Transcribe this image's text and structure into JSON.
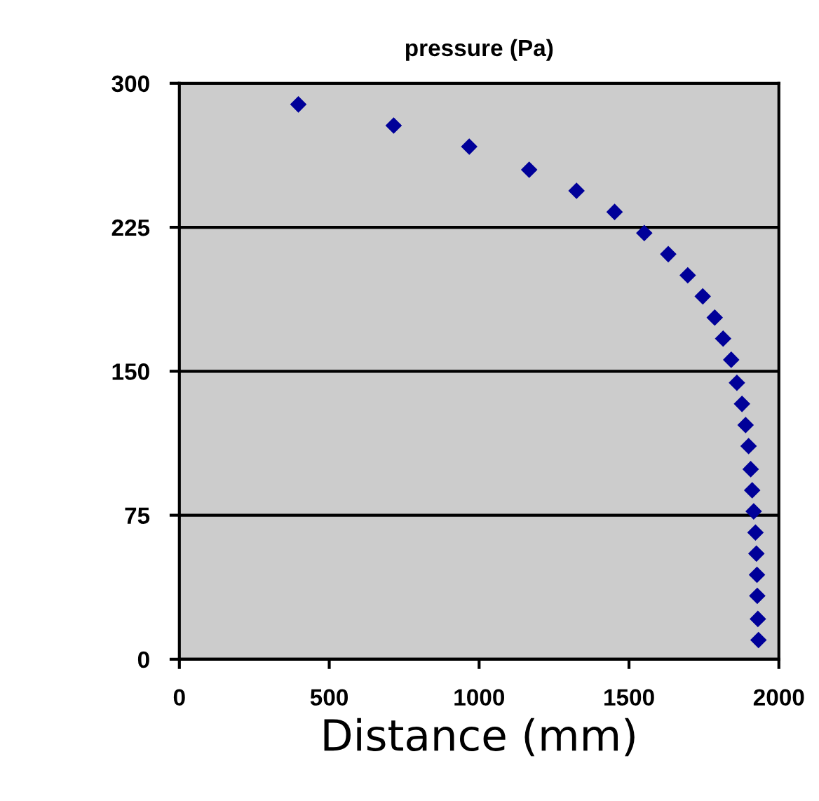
{
  "chart_data": {
    "type": "scatter",
    "title": "pressure (Pa)",
    "xlabel": "Distance (mm)",
    "x": [
      397,
      715,
      967,
      1167,
      1325,
      1452,
      1551,
      1631,
      1696,
      1746,
      1786,
      1814,
      1841,
      1860,
      1877,
      1889,
      1899,
      1906,
      1911,
      1916,
      1922,
      1925,
      1927,
      1928,
      1930,
      1932
    ],
    "series": [
      {
        "color": "#000099",
        "values": [
          289,
          278,
          267,
          255,
          244,
          233,
          222,
          211,
          200,
          189,
          178,
          167,
          156,
          144,
          133,
          122,
          111,
          99,
          88,
          77,
          66,
          55,
          44,
          33,
          21,
          10
        ]
      }
    ],
    "xlim": [
      0,
      2000
    ],
    "xticks": [
      0,
      500,
      1000,
      1500,
      2000
    ],
    "ylim": [
      0,
      300
    ],
    "yticks": [
      0,
      75,
      150,
      225,
      300
    ],
    "grid": "y",
    "marker": "diamond",
    "legend": false
  }
}
